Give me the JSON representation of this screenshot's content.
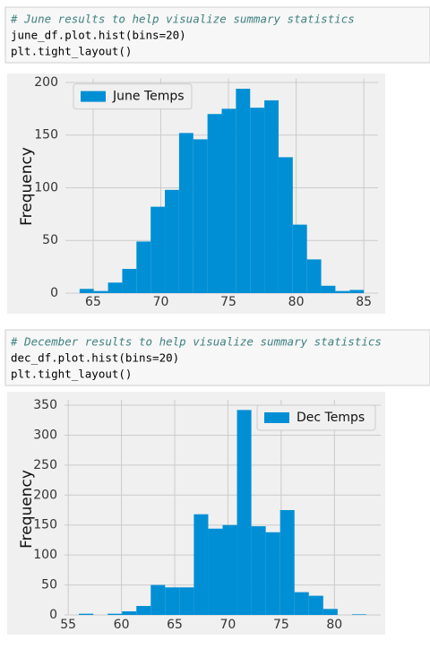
{
  "cells": [
    {
      "lines": [
        "# June results to help visualize summary statistics",
        "june_df.plot.hist(bins=20)",
        "plt.tight_layout()"
      ]
    },
    {
      "lines": [
        "# December results to help visualize summary statistics",
        "dec_df.plot.hist(bins=20)",
        "plt.tight_layout()"
      ]
    }
  ],
  "chart_data": [
    {
      "type": "histogram",
      "ylabel": "Frequency",
      "legend": "upper left",
      "grid": true,
      "series": [
        {
          "name": "June Temps",
          "color": "#008fd5",
          "values": [
            4,
            2,
            10,
            23,
            49,
            82,
            98,
            152,
            146,
            170,
            175,
            194,
            176,
            183,
            129,
            65,
            32,
            7,
            2,
            3
          ]
        }
      ],
      "bins": [
        64,
        65.05,
        66.1,
        67.15,
        68.2,
        69.25,
        70.3,
        71.35,
        72.4,
        73.45,
        74.5,
        75.55,
        76.6,
        77.65,
        78.7,
        79.75,
        80.8,
        81.85,
        82.9,
        83.95,
        85
      ],
      "xlim": [
        62.95,
        86.05
      ],
      "xticks": [
        65,
        70,
        75,
        80,
        85
      ],
      "ylim": [
        0,
        203.7
      ],
      "yticks": [
        0,
        50,
        100,
        150,
        200
      ]
    },
    {
      "type": "histogram",
      "ylabel": "Frequency",
      "legend": "upper right",
      "grid": true,
      "series": [
        {
          "name": "Dec Temps",
          "color": "#008fd5",
          "values": [
            2,
            0,
            2,
            6,
            15,
            50,
            46,
            46,
            168,
            144,
            150,
            342,
            148,
            138,
            175,
            38,
            32,
            10,
            0,
            1
          ]
        }
      ],
      "bins": [
        56,
        57.35,
        58.7,
        60.05,
        61.4,
        62.75,
        64.1,
        65.45,
        66.8,
        68.15,
        69.5,
        70.85,
        72.2,
        73.55,
        74.9,
        76.25,
        77.6,
        78.95,
        80.3,
        81.65,
        83
      ],
      "xlim": [
        54.65,
        84.35
      ],
      "xticks": [
        55,
        60,
        65,
        70,
        75,
        80
      ],
      "ylim": [
        0,
        359
      ],
      "yticks": [
        0,
        50,
        100,
        150,
        200,
        250,
        300,
        350
      ]
    }
  ]
}
